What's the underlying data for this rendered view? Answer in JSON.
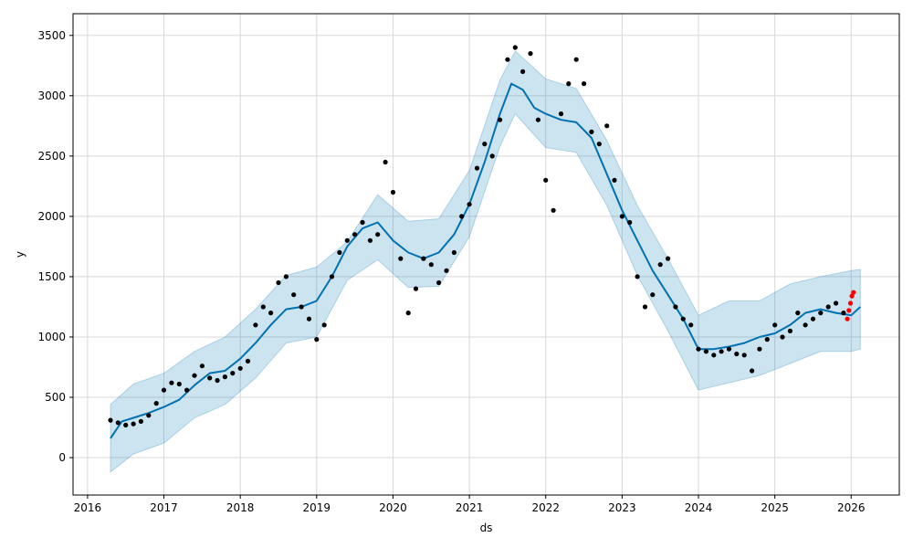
{
  "chart_data": {
    "type": "scatter",
    "xlabel": "ds",
    "ylabel": "y",
    "xlim": [
      2015.81,
      2026.63
    ],
    "ylim": [
      -310,
      3680
    ],
    "x_ticks": [
      2016,
      2017,
      2018,
      2019,
      2020,
      2021,
      2022,
      2023,
      2024,
      2025,
      2026
    ],
    "y_ticks": [
      0,
      500,
      1000,
      1500,
      2000,
      2500,
      3000,
      3500
    ],
    "grid": true,
    "colors": {
      "actual": "#000000",
      "recent_actual": "#ff0000",
      "forecast": "#0072B2",
      "interval": "#0072B2"
    },
    "series": [
      {
        "kind": "forecast",
        "x": [
          2016.3,
          2016.45,
          2016.6,
          2016.8,
          2017.0,
          2017.2,
          2017.4,
          2017.6,
          2017.8,
          2018.0,
          2018.2,
          2018.4,
          2018.6,
          2018.8,
          2019.0,
          2019.2,
          2019.4,
          2019.6,
          2019.8,
          2020.0,
          2020.2,
          2020.4,
          2020.6,
          2020.8,
          2021.0,
          2021.2,
          2021.4,
          2021.55,
          2021.7,
          2021.85,
          2022.0,
          2022.2,
          2022.4,
          2022.6,
          2022.8,
          2023.0,
          2023.2,
          2023.4,
          2023.6,
          2023.8,
          2024.0,
          2024.2,
          2024.4,
          2024.6,
          2024.8,
          2025.0,
          2025.2,
          2025.4,
          2025.6,
          2025.8,
          2026.0,
          2026.12
        ],
        "y": [
          160,
          300,
          330,
          370,
          420,
          480,
          600,
          700,
          720,
          820,
          950,
          1100,
          1230,
          1250,
          1300,
          1500,
          1750,
          1900,
          1950,
          1800,
          1700,
          1650,
          1700,
          1850,
          2100,
          2450,
          2850,
          3100,
          3050,
          2900,
          2850,
          2800,
          2780,
          2650,
          2350,
          2050,
          1800,
          1550,
          1350,
          1150,
          900,
          900,
          920,
          950,
          1000,
          1030,
          1100,
          1200,
          1230,
          1200,
          1180,
          1250
        ]
      },
      {
        "kind": "interval_upper",
        "x": [
          2016.3,
          2016.6,
          2017.0,
          2017.4,
          2017.8,
          2018.2,
          2018.6,
          2019.0,
          2019.4,
          2019.8,
          2020.2,
          2020.6,
          2021.0,
          2021.4,
          2021.6,
          2022.0,
          2022.4,
          2022.8,
          2023.2,
          2023.6,
          2024.0,
          2024.4,
          2024.8,
          2025.2,
          2025.6,
          2026.0,
          2026.12
        ],
        "y": [
          440,
          610,
          700,
          880,
          1000,
          1230,
          1510,
          1580,
          1790,
          2180,
          1960,
          1980,
          2380,
          3130,
          3370,
          3140,
          3060,
          2630,
          2090,
          1650,
          1180,
          1300,
          1300,
          1440,
          1500,
          1550,
          1560
        ]
      },
      {
        "kind": "interval_lower",
        "x": [
          2016.3,
          2016.6,
          2017.0,
          2017.4,
          2017.8,
          2018.2,
          2018.6,
          2019.0,
          2019.4,
          2019.8,
          2020.2,
          2020.6,
          2021.0,
          2021.4,
          2021.6,
          2022.0,
          2022.4,
          2022.8,
          2023.2,
          2023.6,
          2024.0,
          2024.4,
          2024.8,
          2025.2,
          2025.6,
          2026.0,
          2026.12
        ],
        "y": [
          -120,
          30,
          120,
          330,
          440,
          660,
          950,
          1000,
          1470,
          1640,
          1410,
          1420,
          1830,
          2580,
          2850,
          2570,
          2530,
          2090,
          1510,
          1050,
          560,
          620,
          680,
          780,
          880,
          880,
          900
        ]
      },
      {
        "kind": "actual",
        "x": [
          2016.3,
          2016.4,
          2016.5,
          2016.6,
          2016.7,
          2016.8,
          2016.9,
          2017.0,
          2017.1,
          2017.2,
          2017.3,
          2017.4,
          2017.5,
          2017.6,
          2017.7,
          2017.8,
          2017.9,
          2018.0,
          2018.1,
          2018.2,
          2018.3,
          2018.4,
          2018.5,
          2018.6,
          2018.7,
          2018.8,
          2018.9,
          2019.0,
          2019.1,
          2019.2,
          2019.3,
          2019.4,
          2019.5,
          2019.6,
          2019.7,
          2019.8,
          2019.9,
          2020.0,
          2020.1,
          2020.2,
          2020.3,
          2020.4,
          2020.5,
          2020.6,
          2020.7,
          2020.8,
          2020.9,
          2021.0,
          2021.1,
          2021.2,
          2021.3,
          2021.4,
          2021.5,
          2021.6,
          2021.7,
          2021.8,
          2021.9,
          2022.0,
          2022.1,
          2022.2,
          2022.3,
          2022.4,
          2022.5,
          2022.6,
          2022.7,
          2022.8,
          2022.9,
          2023.0,
          2023.1,
          2023.2,
          2023.3,
          2023.4,
          2023.5,
          2023.6,
          2023.7,
          2023.8,
          2023.9,
          2024.0,
          2024.1,
          2024.2,
          2024.3,
          2024.4,
          2024.5,
          2024.6,
          2024.7,
          2024.8,
          2024.9,
          2025.0,
          2025.1,
          2025.2,
          2025.3,
          2025.4,
          2025.5,
          2025.6,
          2025.7,
          2025.8,
          2025.9
        ],
        "y": [
          310,
          290,
          270,
          280,
          300,
          350,
          450,
          560,
          620,
          610,
          560,
          680,
          760,
          660,
          640,
          670,
          700,
          740,
          800,
          1100,
          1250,
          1200,
          1450,
          1500,
          1350,
          1250,
          1150,
          980,
          1100,
          1500,
          1700,
          1800,
          1850,
          1950,
          1800,
          1850,
          2450,
          2200,
          1650,
          1200,
          1400,
          1650,
          1600,
          1450,
          1550,
          1700,
          2000,
          2100,
          2400,
          2600,
          2500,
          2800,
          3300,
          3400,
          3200,
          3350,
          2800,
          2300,
          2050,
          2850,
          3100,
          3300,
          3100,
          2700,
          2600,
          2750,
          2300,
          2000,
          1950,
          1500,
          1250,
          1350,
          1600,
          1650,
          1250,
          1150,
          1100,
          900,
          880,
          850,
          880,
          900,
          860,
          850,
          720,
          900,
          980,
          1100,
          1000,
          1050,
          1200,
          1100,
          1150,
          1200,
          1250,
          1280,
          1200
        ]
      },
      {
        "kind": "recent_actual",
        "x": [
          2025.95,
          2025.97,
          2025.99,
          2026.01,
          2026.03
        ],
        "y": [
          1150,
          1220,
          1280,
          1340,
          1370
        ]
      }
    ]
  }
}
